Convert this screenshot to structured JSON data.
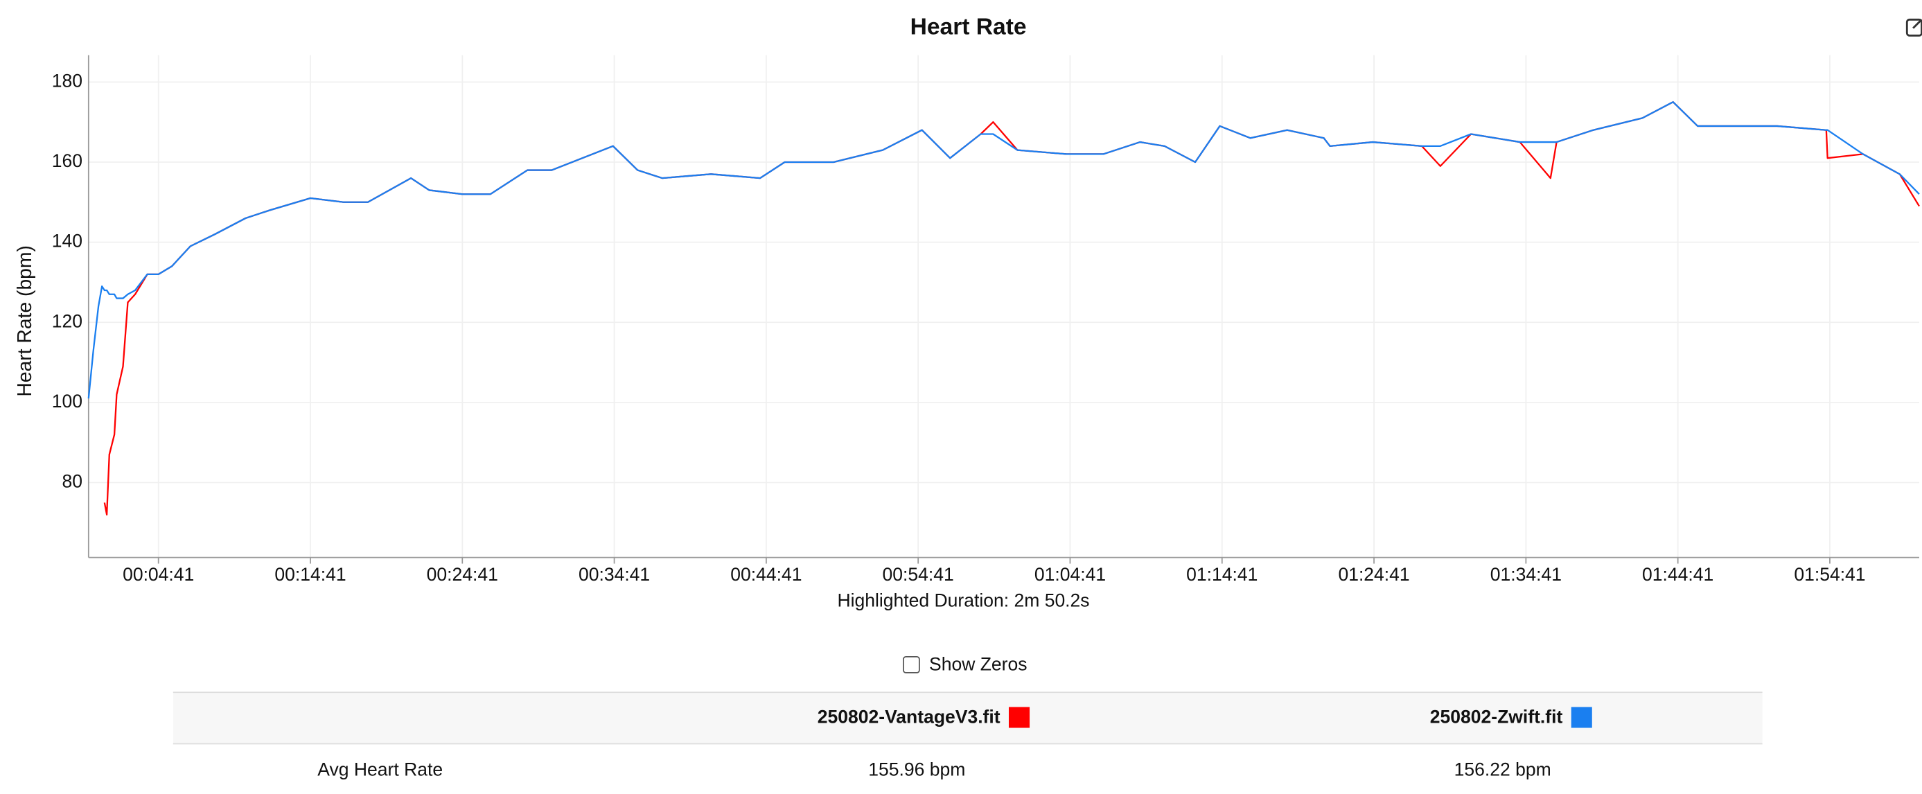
{
  "chart_data": {
    "type": "line",
    "title": "Heart Rate",
    "ylabel": "Heart Rate (bpm)",
    "annotation": "Highlighted Duration: 2m 50.2s",
    "x": [
      5,
      24,
      44,
      58,
      68,
      77,
      87,
      107,
      116,
      141,
      160,
      189,
      237,
      281,
      334,
      407,
      504,
      625,
      721,
      881,
      1012,
      1108,
      1278,
      1350,
      1481,
      1592,
      1738,
      1834,
      1955,
      2076,
      2173,
      2270,
      2463,
      2657,
      2754,
      2947,
      3141,
      3296,
      3407,
      3528,
      3577,
      3673,
      3867,
      4012,
      4157,
      4254,
      4375,
      4472,
      4593,
      4738,
      4883,
      4907,
      5076,
      5270,
      5343,
      5464,
      5657,
      5778,
      5802,
      5947,
      6141,
      6262,
      6359,
      6528,
      6673,
      6867,
      6872,
      7012,
      7157,
      7234
    ],
    "series": [
      {
        "name": "250802-VantageV3.fit",
        "color": "#ff0000",
        "values": [
          null,
          null,
          null,
          null,
          75,
          72,
          87,
          92,
          102,
          109,
          125,
          127,
          132,
          132,
          134,
          139,
          142,
          146,
          148,
          151,
          150,
          150,
          156,
          153,
          152,
          152,
          158,
          158,
          161,
          164,
          158,
          156,
          157,
          156,
          160,
          160,
          163,
          168,
          161,
          167,
          170,
          163,
          162,
          162,
          165,
          164,
          160,
          169,
          166,
          168,
          166,
          164,
          165,
          164,
          159,
          167,
          165,
          156,
          165,
          168,
          171,
          175,
          169,
          169,
          169,
          168,
          161,
          162,
          157,
          149
        ]
      },
      {
        "name": "250802-Zwift.fit",
        "color": "#1a7ff0",
        "values": [
          101,
          113,
          124,
          129,
          128,
          128,
          127,
          127,
          126,
          126,
          127,
          128,
          132,
          132,
          134,
          139,
          142,
          146,
          148,
          151,
          150,
          150,
          156,
          153,
          152,
          152,
          158,
          158,
          161,
          164,
          158,
          156,
          157,
          156,
          160,
          160,
          163,
          168,
          161,
          167,
          167,
          163,
          162,
          162,
          165,
          164,
          160,
          169,
          166,
          168,
          166,
          164,
          165,
          164,
          164,
          167,
          165,
          165,
          165,
          168,
          171,
          175,
          169,
          169,
          169,
          168,
          168,
          162,
          157,
          152
        ]
      }
    ],
    "xlim": [
      5,
      7234
    ],
    "ylim": [
      61.3,
      186.7
    ],
    "xticks": [
      {
        "value": 281,
        "label": "00:04:41"
      },
      {
        "value": 881,
        "label": "00:14:41"
      },
      {
        "value": 1481,
        "label": "00:24:41"
      },
      {
        "value": 2081,
        "label": "00:34:41"
      },
      {
        "value": 2681,
        "label": "00:44:41"
      },
      {
        "value": 3281,
        "label": "00:54:41"
      },
      {
        "value": 3881,
        "label": "01:04:41"
      },
      {
        "value": 4481,
        "label": "01:14:41"
      },
      {
        "value": 5081,
        "label": "01:24:41"
      },
      {
        "value": 5681,
        "label": "01:34:41"
      },
      {
        "value": 6281,
        "label": "01:44:41"
      },
      {
        "value": 6881,
        "label": "01:54:41"
      }
    ],
    "yticks": [
      80,
      100,
      120,
      140,
      160,
      180
    ],
    "grid": true
  },
  "controls": {
    "show_zeros": "Show Zeros"
  },
  "table": {
    "rows": [
      [
        "Avg Heart Rate",
        "155.96 bpm",
        "156.22 bpm"
      ]
    ]
  }
}
